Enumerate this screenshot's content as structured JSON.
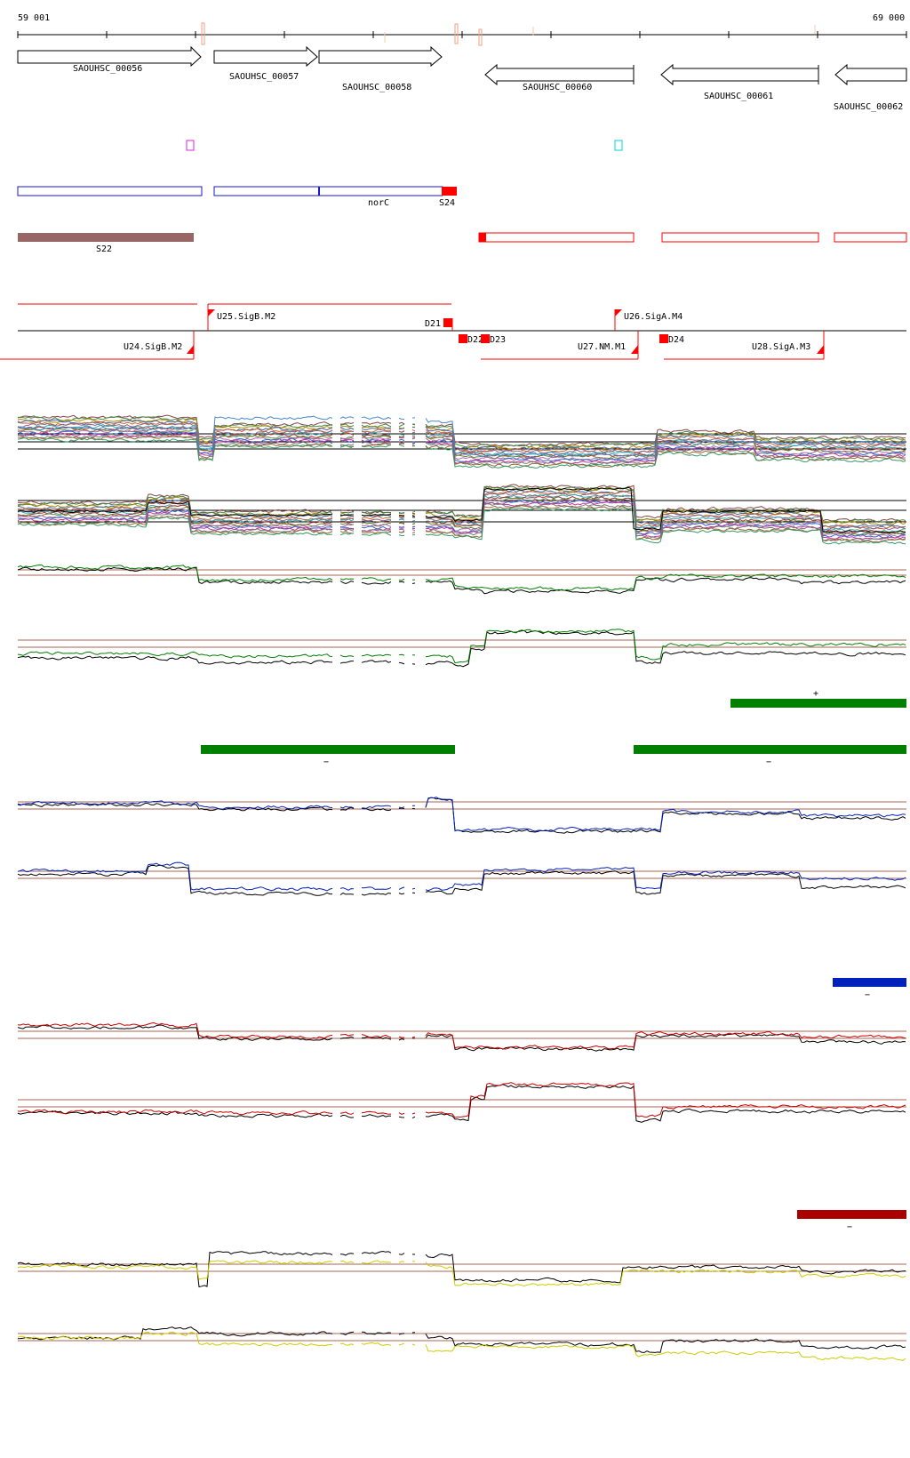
{
  "coords": {
    "start_label": "59 001",
    "end_label": "69 000"
  },
  "genes": [
    {
      "label": "SAOUHSC_00056"
    },
    {
      "label": "SAOUHSC_00057"
    },
    {
      "label": "SAOUHSC_00058"
    },
    {
      "label": "SAOUHSC_00060"
    },
    {
      "label": "SAOUHSC_00061"
    },
    {
      "label": "SAOUHSC_00062"
    }
  ],
  "annotations": {
    "norC": "norC",
    "S24": "S24",
    "S22": "S22"
  },
  "segments": {
    "upstream": [
      {
        "label": "U24.SigB.M2"
      },
      {
        "label": "U25.SigB.M2"
      },
      {
        "label": "U26.SigA.M4"
      },
      {
        "label": "U27.NM.M1"
      },
      {
        "label": "U28.SigA.M3"
      }
    ],
    "downstream": [
      {
        "label": "D21"
      },
      {
        "label": "D22"
      },
      {
        "label": "D23"
      },
      {
        "label": "D24"
      }
    ]
  },
  "strand_marks": {
    "green_plus": "+",
    "green_minus_1": "−",
    "green_minus_2": "−",
    "blue_minus": "−",
    "red_minus": "−"
  },
  "colors": {
    "gene_outline": "#000000",
    "cds_blue": "#1a1acc",
    "segment_red": "#ff0000",
    "ncrna_brown": "#996666",
    "track_green": "#008000",
    "track_blue": "#0022bb",
    "track_red": "#aa0000",
    "track_yellow": "#cccc00",
    "threshold_line": "#aa6655"
  }
}
